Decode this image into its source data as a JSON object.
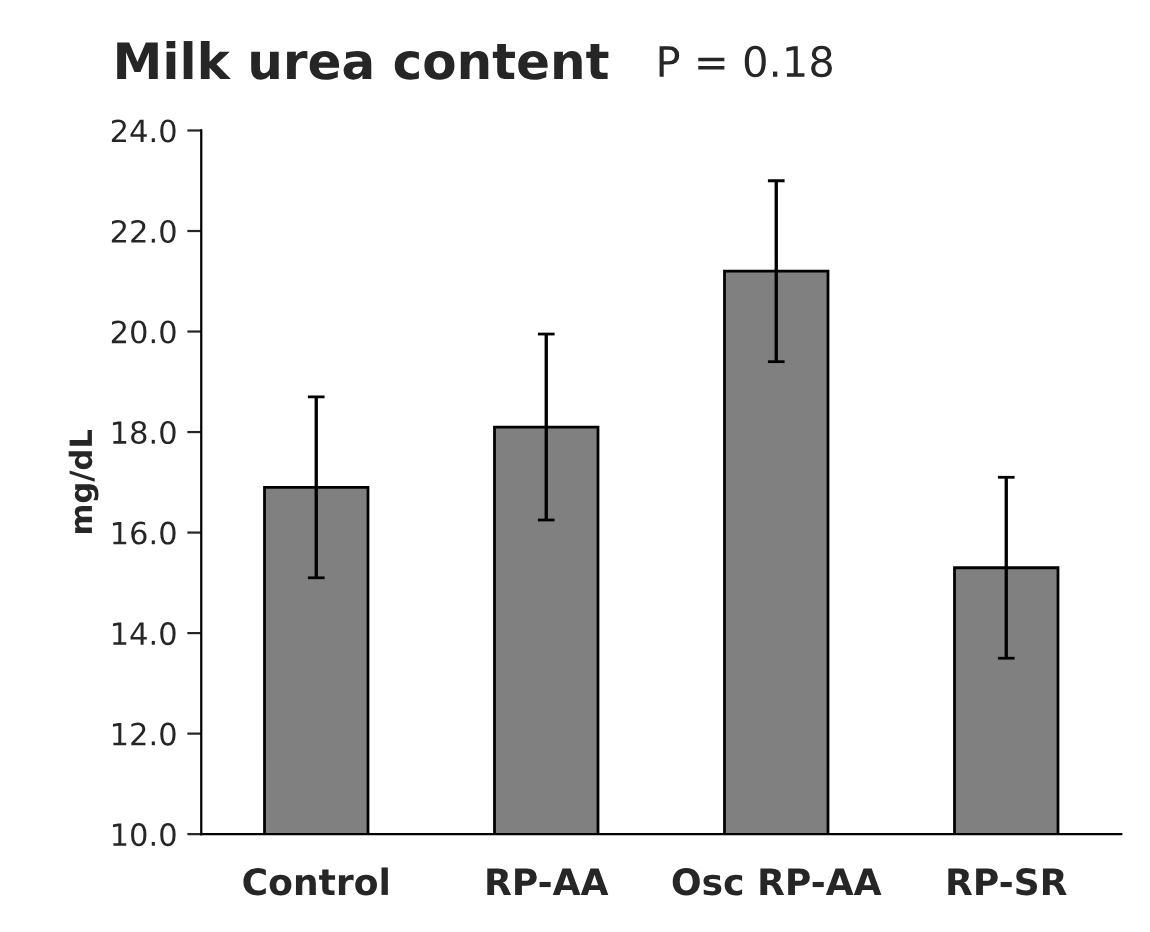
{
  "chart_data": {
    "type": "bar",
    "title": "Milk urea content",
    "annotations": [
      "P = 0.18"
    ],
    "ylabel": "mg/dL",
    "categories": [
      "Control",
      "RP-AA",
      "Osc RP-AA",
      "RP-SR"
    ],
    "values": [
      16.9,
      18.1,
      21.2,
      15.3
    ],
    "errors": [
      1.8,
      1.85,
      1.8,
      1.8
    ],
    "color": "#808080",
    "ylim": [
      10,
      24
    ],
    "yticks": [
      {
        "value": 10,
        "label": "10.0"
      },
      {
        "value": 12,
        "label": "12.0"
      },
      {
        "value": 14,
        "label": "14.0"
      },
      {
        "value": 16,
        "label": "16.0"
      },
      {
        "value": 18,
        "label": "18.0"
      },
      {
        "value": 20,
        "label": "20.0"
      },
      {
        "value": 22,
        "label": "22.0"
      },
      {
        "value": 24,
        "label": "24.0"
      }
    ],
    "grid": false,
    "legend": false
  }
}
